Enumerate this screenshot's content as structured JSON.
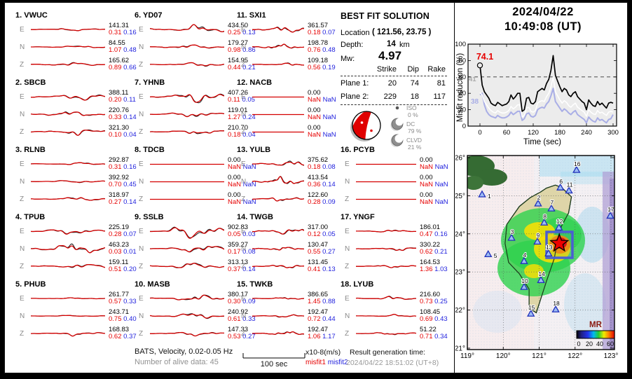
{
  "header": {
    "date": "2024/04/22",
    "time": "10:49:08  (UT)"
  },
  "solution": {
    "title": "BEST FIT SOLUTION",
    "location_label": "Location",
    "location_value": "( 121.56,  23.75 )",
    "depth_label": "Depth:",
    "depth_value": "14",
    "depth_unit": "km",
    "mw_label": "Mw:",
    "mw_value": "4.97",
    "table": {
      "col_headers": [
        "Strike",
        "Dip",
        "Rake"
      ],
      "rows": [
        {
          "label": "Plane 1:",
          "strike": "20",
          "dip": "74",
          "rake": "81"
        },
        {
          "label": "Plane 2:",
          "strike": "229",
          "dip": "18",
          "rake": "117"
        }
      ]
    }
  },
  "decomposition": {
    "items": [
      {
        "name": "ISO",
        "pct": "0 %"
      },
      {
        "name": "DC",
        "pct": "79 %"
      },
      {
        "name": "CLVD",
        "pct": "21 %"
      }
    ]
  },
  "chart_data": {
    "type": "line",
    "title": "Misfit reduction vs time",
    "xlabel": "Time (sec)",
    "ylabel": "Misfit reduction (%)",
    "xlim": [
      0,
      300
    ],
    "ylim": [
      0,
      100
    ],
    "xticks": [
      0,
      60,
      120,
      180,
      240,
      300
    ],
    "yticks": [
      0,
      20,
      40,
      60,
      80,
      100
    ],
    "dashed_y": 60,
    "dt": 5,
    "annotations": {
      "best": "74.1",
      "white_start": "41",
      "lavender_start": "38"
    },
    "series": [
      {
        "name": "best-misfit-reduction",
        "color": "#000000",
        "values": [
          74.1,
          50,
          42,
          38,
          34,
          28,
          26,
          25,
          29,
          27,
          25,
          26,
          27,
          30,
          38,
          33,
          36,
          40,
          40,
          18,
          20,
          34,
          35,
          28,
          27,
          30,
          42,
          44,
          46,
          44,
          52,
          57,
          68,
          86,
          62,
          55,
          48,
          42,
          46,
          44,
          38,
          36,
          40,
          42,
          36,
          33,
          30,
          28,
          20,
          32,
          28,
          25,
          24,
          30,
          26,
          28,
          25,
          22,
          28,
          29,
          28
        ]
      },
      {
        "name": "secondary-white",
        "color": "#ffffff",
        "values": [
          41,
          38,
          30,
          26,
          22,
          19,
          17,
          16,
          19,
          17,
          16,
          16,
          17,
          19,
          24,
          21,
          23,
          26,
          26,
          11,
          13,
          22,
          23,
          18,
          17,
          19,
          28,
          30,
          31,
          30,
          36,
          40,
          48,
          60,
          42,
          37,
          32,
          28,
          31,
          29,
          25,
          23,
          26,
          28,
          23,
          21,
          19,
          17,
          12,
          20,
          17,
          15,
          14,
          19,
          16,
          17,
          15,
          13,
          17,
          18,
          17
        ]
      },
      {
        "name": "secondary-lavender",
        "color": "#a9aee6",
        "values": [
          38,
          40,
          26,
          18,
          14,
          12,
          11,
          10,
          13,
          11,
          10,
          10,
          11,
          13,
          17,
          14,
          16,
          18,
          18,
          7,
          9,
          15,
          16,
          12,
          11,
          13,
          20,
          22,
          23,
          22,
          27,
          30,
          37,
          46,
          30,
          26,
          22,
          18,
          21,
          19,
          16,
          14,
          17,
          19,
          14,
          12,
          10,
          8,
          4,
          11,
          8,
          6,
          5,
          10,
          7,
          8,
          6,
          4,
          8,
          9,
          14
        ]
      }
    ]
  },
  "map": {
    "lon_ticks": [
      "119°",
      "120°",
      "121°",
      "122°",
      "123°"
    ],
    "lat_ticks": [
      "26°",
      "25°",
      "24°",
      "23°",
      "22°",
      "21°"
    ],
    "lon_range": [
      119,
      123
    ],
    "lat_range": [
      21,
      26
    ],
    "epicenter": {
      "lon": 121.56,
      "lat": 23.75
    },
    "colorbar": {
      "label": "MR",
      "ticks": [
        "0",
        "20",
        "40",
        "60"
      ]
    },
    "stations": [
      {
        "n": "1",
        "lon": 119.41,
        "lat": 25.03,
        "lx": 8,
        "ly": 2
      },
      {
        "n": "2",
        "lon": 120.97,
        "lat": 24.79
      },
      {
        "n": "3",
        "lon": 120.23,
        "lat": 23.89
      },
      {
        "n": "4",
        "lon": 120.58,
        "lat": 23.28
      },
      {
        "n": "5",
        "lon": 119.58,
        "lat": 23.46,
        "lx": 8,
        "ly": 2
      },
      {
        "n": "6",
        "lon": 121.59,
        "lat": 25.21
      },
      {
        "n": "7",
        "lon": 121.34,
        "lat": 24.66
      },
      {
        "n": "8",
        "lon": 121.14,
        "lat": 24.29
      },
      {
        "n": "9",
        "lon": 120.95,
        "lat": 23.79
      },
      {
        "n": "10",
        "lon": 120.58,
        "lat": 22.6
      },
      {
        "n": "11",
        "lon": 121.83,
        "lat": 25.13
      },
      {
        "n": "12",
        "lon": 121.55,
        "lat": 24.16
      },
      {
        "n": "13",
        "lon": 121.26,
        "lat": 23.48
      },
      {
        "n": "14",
        "lon": 121.05,
        "lat": 22.78
      },
      {
        "n": "15",
        "lon": 120.77,
        "lat": 21.9
      },
      {
        "n": "16",
        "lon": 122.04,
        "lat": 25.67
      },
      {
        "n": "17",
        "lon": 122.98,
        "lat": 24.47
      },
      {
        "n": "18",
        "lon": 121.46,
        "lat": 22.01
      }
    ]
  },
  "waveforms": {
    "stations": [
      {
        "label": "1. VWUC",
        "name": "VWUC",
        "channels": [
          {
            "comp": "E",
            "amp": "141.31",
            "misfit1": "0.31",
            "misfit2": "0.16",
            "wiggle": 2
          },
          {
            "comp": "N",
            "amp": "84.55",
            "misfit1": "1.07",
            "misfit2": "0.48",
            "wiggle": 2
          },
          {
            "comp": "Z",
            "amp": "165.62",
            "misfit1": "0.89",
            "misfit2": "0.66",
            "wiggle": 3
          }
        ]
      },
      {
        "label": "2. SBCB",
        "name": "SBCB",
        "channels": [
          {
            "comp": "E",
            "amp": "388.11",
            "misfit1": "0.20",
            "misfit2": "0.11",
            "wiggle": 5
          },
          {
            "comp": "N",
            "amp": "220.76",
            "misfit1": "0.33",
            "misfit2": "0.14",
            "wiggle": 4
          },
          {
            "comp": "Z",
            "amp": "321.30",
            "misfit1": "0.10",
            "misfit2": "0.04",
            "wiggle": 5
          }
        ]
      },
      {
        "label": "3. RLNB",
        "name": "RLNB",
        "channels": [
          {
            "comp": "E",
            "amp": "292.87",
            "misfit1": "0.31",
            "misfit2": "0.16",
            "wiggle": 2
          },
          {
            "comp": "N",
            "amp": "392.92",
            "misfit1": "0.70",
            "misfit2": "0.45",
            "wiggle": 2
          },
          {
            "comp": "Z",
            "amp": "318.97",
            "misfit1": "0.27",
            "misfit2": "0.14",
            "wiggle": 3
          }
        ]
      },
      {
        "label": "4. TPUB",
        "name": "TPUB",
        "channels": [
          {
            "comp": "E",
            "amp": "225.19",
            "misfit1": "0.28",
            "misfit2": "0.07",
            "wiggle": 5
          },
          {
            "comp": "N",
            "amp": "463.23",
            "misfit1": "0.03",
            "misfit2": "0.01",
            "wiggle": 9
          },
          {
            "comp": "Z",
            "amp": "159.11",
            "misfit1": "0.51",
            "misfit2": "0.20",
            "wiggle": 4
          }
        ]
      },
      {
        "label": "5. PHUB",
        "name": "PHUB",
        "channels": [
          {
            "comp": "E",
            "amp": "261.77",
            "misfit1": "0.57",
            "misfit2": "0.33",
            "wiggle": 1
          },
          {
            "comp": "N",
            "amp": "243.71",
            "misfit1": "0.75",
            "misfit2": "0.40",
            "wiggle": 1
          },
          {
            "comp": "Z",
            "amp": "168.83",
            "misfit1": "0.62",
            "misfit2": "0.37",
            "wiggle": 3
          }
        ]
      },
      {
        "label": "6. YD07",
        "name": "YD07",
        "channels": [
          {
            "comp": "E",
            "amp": "434.50",
            "misfit1": "0.25",
            "misfit2": "0.13",
            "wiggle": 7
          },
          {
            "comp": "N",
            "amp": "179.27",
            "misfit1": "0.98",
            "misfit2": "0.86",
            "wiggle": 3
          },
          {
            "comp": "Z",
            "amp": "154.95",
            "misfit1": "0.44",
            "misfit2": "0.21",
            "wiggle": 3
          }
        ]
      },
      {
        "label": "7. YHNB",
        "name": "YHNB",
        "channels": [
          {
            "comp": "E",
            "amp": "407.26",
            "misfit1": "0.11",
            "misfit2": "0.05",
            "wiggle": 8
          },
          {
            "comp": "N",
            "amp": "119.01",
            "misfit1": "1.27",
            "misfit2": "0.24",
            "wiggle": 4
          },
          {
            "comp": "Z",
            "amp": "210.70",
            "misfit1": "0.18",
            "misfit2": "0.04",
            "wiggle": 4
          }
        ]
      },
      {
        "label": "8. TDCB",
        "name": "TDCB",
        "channels": [
          {
            "comp": "E",
            "amp": "0.00",
            "misfit1": "NaN",
            "misfit2": "NaN",
            "wiggle": 0
          },
          {
            "comp": "N",
            "amp": "0.00",
            "misfit1": "NaN",
            "misfit2": "NaN",
            "wiggle": 0
          },
          {
            "comp": "Z",
            "amp": "0.00",
            "misfit1": "NaN",
            "misfit2": "NaN",
            "wiggle": 0
          }
        ]
      },
      {
        "label": "9. SSLB",
        "name": "SSLB",
        "channels": [
          {
            "comp": "E",
            "amp": "902.83",
            "misfit1": "0.05",
            "misfit2": "0.03",
            "wiggle": 11
          },
          {
            "comp": "N",
            "amp": "359.27",
            "misfit1": "0.17",
            "misfit2": "0.08",
            "wiggle": 6
          },
          {
            "comp": "Z",
            "amp": "313.13",
            "misfit1": "0.37",
            "misfit2": "0.14",
            "wiggle": 5
          }
        ]
      },
      {
        "label": "10. MASB",
        "name": "MASB",
        "channels": [
          {
            "comp": "E",
            "amp": "380.17",
            "misfit1": "0.30",
            "misfit2": "0.09",
            "wiggle": 5
          },
          {
            "comp": "N",
            "amp": "240.92",
            "misfit1": "0.61",
            "misfit2": "0.33",
            "wiggle": 5
          },
          {
            "comp": "Z",
            "amp": "147.33",
            "misfit1": "0.53",
            "misfit2": "0.27",
            "wiggle": 3
          }
        ]
      },
      {
        "label": "11. SXI1",
        "name": "SXI1",
        "channels": [
          {
            "comp": "E",
            "amp": "361.57",
            "misfit1": "0.18",
            "misfit2": "0.07",
            "wiggle": 5
          },
          {
            "comp": "N",
            "amp": "198.78",
            "misfit1": "0.76",
            "misfit2": "0.48",
            "wiggle": 4
          },
          {
            "comp": "Z",
            "amp": "109.18",
            "misfit1": "0.56",
            "misfit2": "0.19",
            "wiggle": 2
          }
        ]
      },
      {
        "label": "12. NACB",
        "name": "NACB",
        "channels": [
          {
            "comp": "E",
            "amp": "0.00",
            "misfit1": "NaN",
            "misfit2": "NaN",
            "wiggle": 0
          },
          {
            "comp": "N",
            "amp": "0.00",
            "misfit1": "NaN",
            "misfit2": "NaN",
            "wiggle": 0
          },
          {
            "comp": "Z",
            "amp": "0.00",
            "misfit1": "NaN",
            "misfit2": "NaN",
            "wiggle": 0
          }
        ]
      },
      {
        "label": "13. YULB",
        "name": "YULB",
        "channels": [
          {
            "comp": "E",
            "amp": "375.62",
            "misfit1": "0.18",
            "misfit2": "0.08",
            "wiggle": 5
          },
          {
            "comp": "N",
            "amp": "413.54",
            "misfit1": "0.36",
            "misfit2": "0.14",
            "wiggle": 6
          },
          {
            "comp": "Z",
            "amp": "122.60",
            "misfit1": "0.28",
            "misfit2": "0.09",
            "wiggle": 3
          }
        ]
      },
      {
        "label": "14. TWGB",
        "name": "TWGB",
        "channels": [
          {
            "comp": "E",
            "amp": "317.00",
            "misfit1": "0.12",
            "misfit2": "0.05",
            "wiggle": 5
          },
          {
            "comp": "N",
            "amp": "130.47",
            "misfit1": "0.55",
            "misfit2": "0.27",
            "wiggle": 3
          },
          {
            "comp": "Z",
            "amp": "131.45",
            "misfit1": "0.41",
            "misfit2": "0.13",
            "wiggle": 3
          }
        ]
      },
      {
        "label": "15. TWKB",
        "name": "TWKB",
        "channels": [
          {
            "comp": "E",
            "amp": "386.65",
            "misfit1": "1.45",
            "misfit2": "0.88",
            "wiggle": 2
          },
          {
            "comp": "N",
            "amp": "192.47",
            "misfit1": "0.72",
            "misfit2": "0.44",
            "wiggle": 2
          },
          {
            "comp": "Z",
            "amp": "192.47",
            "misfit1": "1.06",
            "misfit2": "1.17",
            "wiggle": 3
          }
        ]
      },
      {
        "label": "16. PCYB",
        "name": "PCYB",
        "channels": [
          {
            "comp": "E",
            "amp": "0.00",
            "misfit1": "NaN",
            "misfit2": "NaN",
            "wiggle": 0
          },
          {
            "comp": "N",
            "amp": "0.00",
            "misfit1": "NaN",
            "misfit2": "NaN",
            "wiggle": 0
          },
          {
            "comp": "Z",
            "amp": "0.00",
            "misfit1": "NaN",
            "misfit2": "NaN",
            "wiggle": 0
          }
        ]
      },
      {
        "label": "17. YNGF",
        "name": "YNGF",
        "channels": [
          {
            "comp": "E",
            "amp": "186.01",
            "misfit1": "0.47",
            "misfit2": "0.16",
            "wiggle": 2
          },
          {
            "comp": "N",
            "amp": "330.22",
            "misfit1": "0.62",
            "misfit2": "0.21",
            "wiggle": 3
          },
          {
            "comp": "Z",
            "amp": "164.53",
            "misfit1": "1.36",
            "misfit2": "1.03",
            "wiggle": 2
          }
        ]
      },
      {
        "label": "18. LYUB",
        "name": "LYUB",
        "channels": [
          {
            "comp": "E",
            "amp": "216.60",
            "misfit1": "0.73",
            "misfit2": "0.25",
            "wiggle": 3
          },
          {
            "comp": "N",
            "amp": "108.45",
            "misfit1": "0.69",
            "misfit2": "0.43",
            "wiggle": 2
          },
          {
            "comp": "Z",
            "amp": "51.22",
            "misfit1": "0.71",
            "misfit2": "0.34",
            "wiggle": 2
          }
        ]
      }
    ]
  },
  "footer": {
    "filter": "BATS, Velocity, 0.02-0.05 Hz",
    "alive": "Number of alive data: 45",
    "scalebar_label": "100 sec",
    "units": "x10-8(m/s)",
    "legend": [
      {
        "label": "misfit1",
        "color": "#e60000"
      },
      {
        "label": "misfit2",
        "color": "#2121dd"
      }
    ],
    "result_label": "Result generation time:",
    "result_value": "2024/04/22 18:51:02 (UT+8)"
  }
}
